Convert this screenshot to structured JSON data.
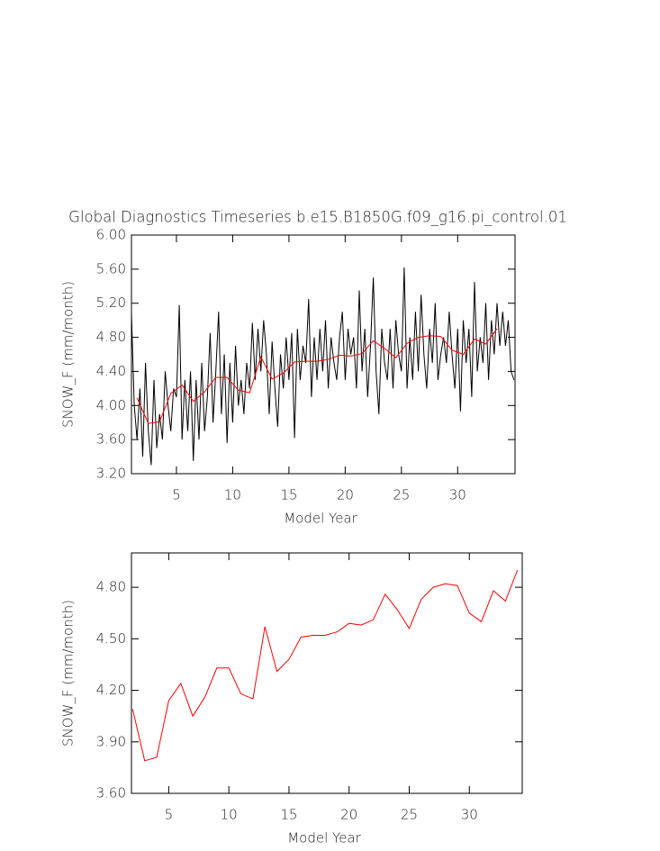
{
  "chart_data": [
    {
      "type": "line",
      "title": "Global Diagnostics Timeseries b.e15.B1850G.f09_g16.pi_control.01",
      "xlabel": "Model Year",
      "ylabel": "SNOW_F (mm/month)",
      "xlim": [
        1,
        35.1
      ],
      "xticks": [
        5,
        10,
        15,
        20,
        25,
        30
      ],
      "ylim": [
        3.2,
        6.0
      ],
      "yticks": [
        {
          "value": 3.2,
          "label": "3.20"
        },
        {
          "value": 3.6,
          "label": "3.60"
        },
        {
          "value": 4.0,
          "label": "4.00"
        },
        {
          "value": 4.4,
          "label": "4.40"
        },
        {
          "value": 4.8,
          "label": "4.80"
        },
        {
          "value": 5.2,
          "label": "5.20"
        },
        {
          "value": 5.6,
          "label": "5.60"
        },
        {
          "value": 6.0,
          "label": "6.00"
        }
      ],
      "series": [
        {
          "color": "#000000",
          "x": [
            1,
            1.25,
            1.5,
            1.75,
            2,
            2.25,
            2.5,
            2.75,
            3,
            3.25,
            3.5,
            3.75,
            4,
            4.25,
            4.5,
            4.75,
            5,
            5.25,
            5.5,
            5.75,
            6,
            6.25,
            6.5,
            6.75,
            7,
            7.25,
            7.5,
            7.75,
            8,
            8.25,
            8.5,
            8.75,
            9,
            9.25,
            9.5,
            9.75,
            10,
            10.25,
            10.5,
            10.75,
            11,
            11.25,
            11.5,
            11.75,
            12,
            12.25,
            12.5,
            12.75,
            13,
            13.25,
            13.5,
            13.75,
            14,
            14.25,
            14.5,
            14.75,
            15,
            15.25,
            15.5,
            15.75,
            16,
            16.25,
            16.5,
            16.75,
            17,
            17.25,
            17.5,
            17.75,
            18,
            18.25,
            18.5,
            18.75,
            19,
            19.25,
            19.5,
            19.75,
            20,
            20.25,
            20.5,
            20.75,
            21,
            21.25,
            21.5,
            21.75,
            22,
            22.25,
            22.5,
            22.75,
            23,
            23.25,
            23.5,
            23.75,
            24,
            24.25,
            24.5,
            24.75,
            25,
            25.25,
            25.5,
            25.75,
            26,
            26.25,
            26.5,
            26.75,
            27,
            27.25,
            27.5,
            27.75,
            28,
            28.25,
            28.5,
            28.75,
            29,
            29.25,
            29.5,
            29.75,
            30,
            30.25,
            30.5,
            30.75,
            31,
            31.25,
            31.5,
            31.75,
            32,
            32.25,
            32.5,
            32.75,
            33,
            33.25,
            33.5,
            33.75,
            34,
            34.25,
            34.5,
            34.75,
            35
          ],
          "values": [
            5.08,
            4.0,
            3.6,
            4.2,
            3.4,
            4.5,
            3.7,
            3.3,
            4.3,
            3.5,
            3.9,
            3.6,
            4.4,
            4.0,
            3.7,
            4.2,
            4.1,
            5.18,
            3.6,
            4.3,
            3.7,
            4.4,
            3.35,
            4.3,
            3.6,
            4.5,
            3.7,
            4.1,
            4.85,
            3.8,
            4.4,
            5.1,
            3.9,
            4.6,
            3.56,
            4.5,
            3.8,
            4.7,
            4.0,
            4.3,
            3.9,
            4.5,
            4.2,
            4.97,
            4.3,
            4.9,
            4.4,
            5.0,
            4.6,
            3.9,
            4.75,
            4.2,
            3.75,
            4.6,
            4.2,
            4.8,
            4.3,
            4.85,
            3.62,
            4.9,
            4.3,
            4.7,
            4.5,
            5.25,
            4.1,
            4.8,
            4.3,
            4.9,
            4.4,
            5.0,
            4.2,
            4.8,
            4.5,
            4.3,
            4.8,
            5.1,
            4.3,
            4.9,
            4.6,
            4.8,
            4.2,
            5.35,
            4.4,
            4.9,
            4.1,
            4.7,
            5.5,
            4.4,
            3.9,
            4.9,
            4.5,
            4.3,
            4.9,
            4.2,
            5.0,
            4.6,
            4.4,
            5.62,
            4.2,
            4.8,
            4.3,
            5.1,
            4.4,
            5.3,
            4.6,
            4.2,
            4.9,
            4.5,
            5.2,
            4.3,
            4.6,
            4.8,
            4.5,
            5.1,
            4.6,
            4.2,
            4.9,
            3.93,
            5.0,
            4.5,
            4.9,
            4.1,
            5.45,
            4.4,
            4.8,
            4.5,
            5.2,
            4.3,
            5.0,
            4.6,
            5.2,
            4.7,
            5.1,
            4.7,
            5.0,
            4.4,
            4.3
          ]
        },
        {
          "color": "#ff0000",
          "x": [
            1.5,
            2.5,
            3.5,
            4.5,
            5.5,
            6.5,
            7.5,
            8.5,
            9.5,
            10.5,
            11.5,
            12.5,
            13.5,
            14.5,
            15.5,
            16.5,
            17.5,
            18.5,
            19.5,
            20.5,
            21.5,
            22.5,
            23.5,
            24.5,
            25.5,
            26.5,
            27.5,
            28.5,
            29.5,
            30.5,
            31.5,
            32.5,
            33.5
          ],
          "values": [
            4.09,
            3.79,
            3.81,
            4.14,
            4.24,
            4.05,
            4.16,
            4.33,
            4.33,
            4.18,
            4.15,
            4.57,
            4.31,
            4.38,
            4.51,
            4.52,
            4.52,
            4.54,
            4.59,
            4.58,
            4.61,
            4.76,
            4.67,
            4.56,
            4.73,
            4.8,
            4.82,
            4.81,
            4.65,
            4.6,
            4.78,
            4.72,
            4.9
          ]
        }
      ]
    },
    {
      "type": "line",
      "xlabel": "Model Year",
      "ylabel": "SNOW_F (mm/month)",
      "xlim": [
        1.9,
        34.4
      ],
      "xticks": [
        5,
        10,
        15,
        20,
        25,
        30
      ],
      "ylim": [
        3.6,
        5.0
      ],
      "yticks": [
        {
          "value": 3.6,
          "label": "3.60"
        },
        {
          "value": 3.9,
          "label": "3.90"
        },
        {
          "value": 4.2,
          "label": "4.20"
        },
        {
          "value": 4.5,
          "label": "4.50"
        },
        {
          "value": 4.8,
          "label": "4.80"
        }
      ],
      "series": [
        {
          "color": "#ff0000",
          "x": [
            2,
            3,
            4,
            5,
            6,
            7,
            8,
            9,
            10,
            11,
            12,
            13,
            14,
            15,
            16,
            17,
            18,
            19,
            20,
            21,
            22,
            23,
            24,
            25,
            26,
            27,
            28,
            29,
            30,
            31,
            32,
            33,
            34
          ],
          "values": [
            4.09,
            3.79,
            3.81,
            4.14,
            4.24,
            4.05,
            4.16,
            4.33,
            4.33,
            4.18,
            4.15,
            4.57,
            4.31,
            4.38,
            4.51,
            4.52,
            4.52,
            4.54,
            4.59,
            4.58,
            4.61,
            4.76,
            4.67,
            4.56,
            4.73,
            4.8,
            4.82,
            4.81,
            4.65,
            4.6,
            4.78,
            4.72,
            4.9
          ]
        }
      ]
    }
  ]
}
